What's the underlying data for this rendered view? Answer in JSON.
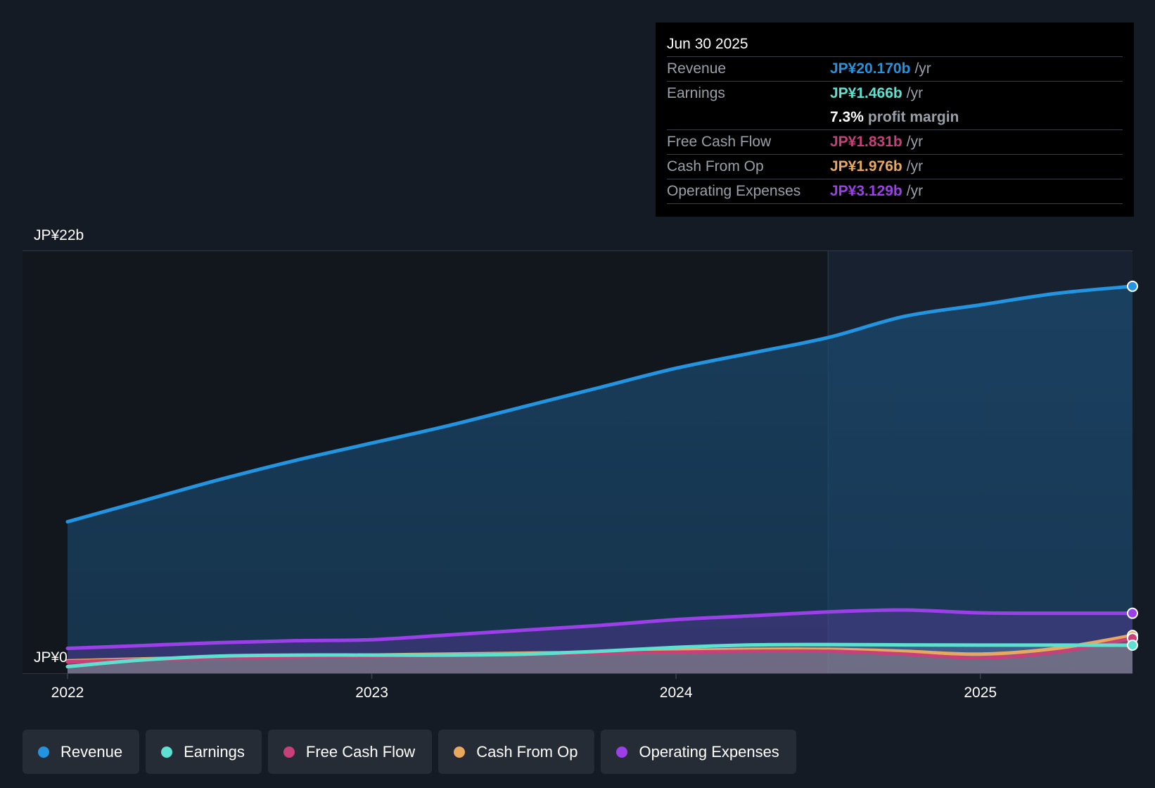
{
  "chart_data": {
    "type": "area",
    "y_max_label": "JP¥22b",
    "y_min_label": "JP¥0",
    "ylim": [
      0,
      22
    ],
    "xlim": [
      2022.0,
      2025.5
    ],
    "x_tick_labels": [
      "2022",
      "2023",
      "2024",
      "2025"
    ],
    "x_ticks": [
      2022,
      2023,
      2024,
      2025
    ],
    "forecast_start": 2024.5,
    "series": [
      {
        "name": "Revenue",
        "color": "#2394e0",
        "x": [
          2022.0,
          2022.25,
          2022.5,
          2022.75,
          2023.0,
          2023.25,
          2023.5,
          2023.75,
          2024.0,
          2024.25,
          2024.5,
          2024.75,
          2025.0,
          2025.25,
          2025.5
        ],
        "values": [
          7.9,
          9.0,
          10.1,
          11.1,
          12.0,
          12.9,
          13.9,
          14.9,
          15.9,
          16.7,
          17.5,
          18.6,
          19.2,
          19.8,
          20.17
        ]
      },
      {
        "name": "Earnings",
        "color": "#5ee0d0",
        "x": [
          2022.0,
          2022.25,
          2022.5,
          2022.75,
          2023.0,
          2023.25,
          2023.5,
          2023.75,
          2024.0,
          2024.25,
          2024.5,
          2024.75,
          2025.0,
          2025.25,
          2025.5
        ],
        "values": [
          0.35,
          0.7,
          0.9,
          0.95,
          0.95,
          0.95,
          1.0,
          1.15,
          1.35,
          1.48,
          1.5,
          1.48,
          1.47,
          1.47,
          1.466
        ]
      },
      {
        "name": "Free Cash Flow",
        "color": "#c8407a",
        "x": [
          2022.0,
          2022.25,
          2022.5,
          2022.75,
          2023.0,
          2023.25,
          2023.5,
          2023.75,
          2024.0,
          2024.25,
          2024.5,
          2024.75,
          2025.0,
          2025.25,
          2025.5
        ],
        "values": [
          0.6,
          0.7,
          0.8,
          0.85,
          0.9,
          0.95,
          1.0,
          1.05,
          1.1,
          1.15,
          1.15,
          1.0,
          0.8,
          1.1,
          1.831
        ]
      },
      {
        "name": "Cash From Op",
        "color": "#e8a860",
        "x": [
          2022.0,
          2022.25,
          2022.5,
          2022.75,
          2023.0,
          2023.25,
          2023.5,
          2023.75,
          2024.0,
          2024.25,
          2024.5,
          2024.75,
          2025.0,
          2025.25,
          2025.5
        ],
        "values": [
          0.65,
          0.75,
          0.85,
          0.9,
          0.95,
          1.0,
          1.05,
          1.1,
          1.2,
          1.25,
          1.25,
          1.15,
          1.0,
          1.3,
          1.976
        ]
      },
      {
        "name": "Operating Expenses",
        "color": "#9b40e8",
        "x": [
          2022.0,
          2022.25,
          2022.5,
          2022.75,
          2023.0,
          2023.25,
          2023.5,
          2023.75,
          2024.0,
          2024.25,
          2024.5,
          2024.75,
          2025.0,
          2025.25,
          2025.5
        ],
        "values": [
          1.3,
          1.45,
          1.6,
          1.7,
          1.75,
          2.0,
          2.25,
          2.5,
          2.8,
          3.0,
          3.2,
          3.3,
          3.15,
          3.13,
          3.129
        ]
      }
    ]
  },
  "tooltip": {
    "date": "Jun 30 2025",
    "rows": [
      {
        "label": "Revenue",
        "value": "JP¥20.170b",
        "unit": "/yr",
        "color": "#2394e0"
      },
      {
        "label": "Earnings",
        "value": "JP¥1.466b",
        "unit": "/yr",
        "color": "#5ee0d0"
      },
      {
        "label": "",
        "value": "7.3%",
        "unit": "profit margin",
        "color": "#ffffff"
      },
      {
        "label": "Free Cash Flow",
        "value": "JP¥1.831b",
        "unit": "/yr",
        "color": "#c8407a"
      },
      {
        "label": "Cash From Op",
        "value": "JP¥1.976b",
        "unit": "/yr",
        "color": "#e8a860"
      },
      {
        "label": "Operating Expenses",
        "value": "JP¥3.129b",
        "unit": "/yr",
        "color": "#9b40e8"
      }
    ]
  },
  "legend": [
    {
      "label": "Revenue",
      "color": "#2394e0"
    },
    {
      "label": "Earnings",
      "color": "#5ee0d0"
    },
    {
      "label": "Free Cash Flow",
      "color": "#c8407a"
    },
    {
      "label": "Cash From Op",
      "color": "#e8a860"
    },
    {
      "label": "Operating Expenses",
      "color": "#9b40e8"
    }
  ]
}
